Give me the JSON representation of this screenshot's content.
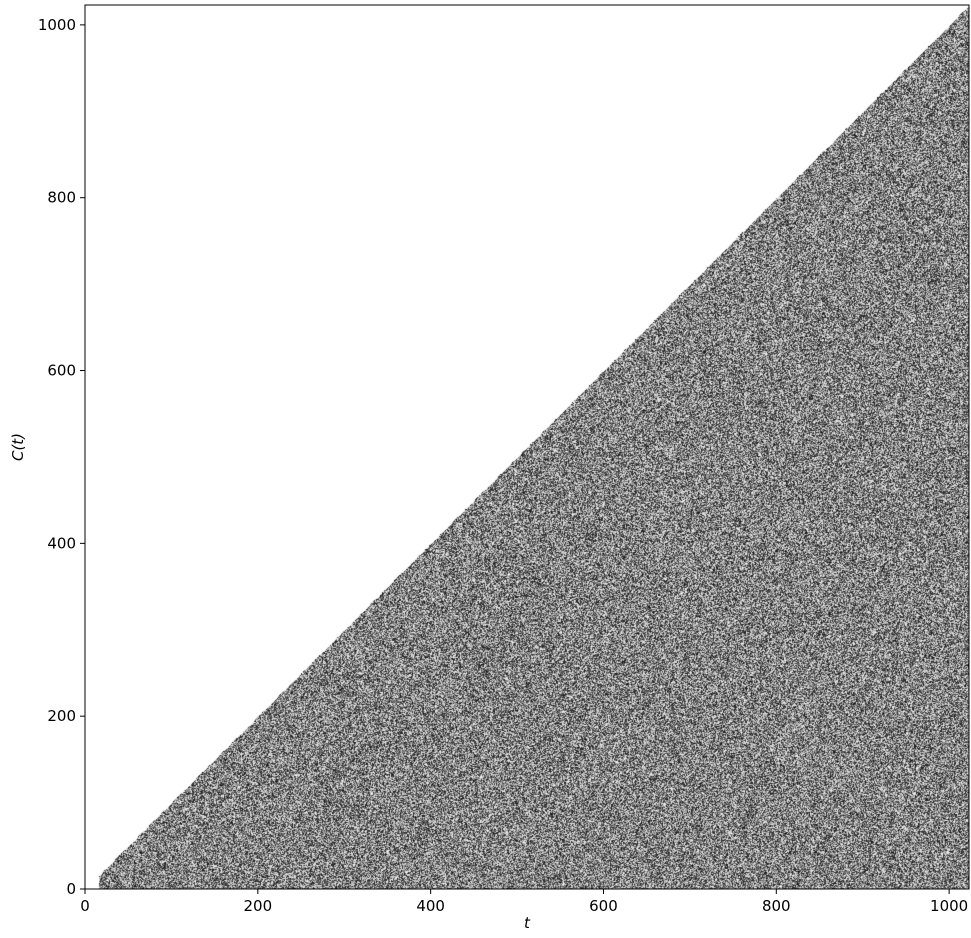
{
  "chart_data": {
    "type": "heatmap",
    "title": "",
    "xlabel": "t",
    "ylabel": "C(t)",
    "xlim": [
      0,
      1023
    ],
    "ylim": [
      0,
      1023
    ],
    "xticks": [
      0,
      200,
      400,
      600,
      800,
      1000
    ],
    "yticks": [
      0,
      200,
      400,
      600,
      800,
      1000
    ],
    "grid": false,
    "legend": "none",
    "cell_region": "lower triangle, C(t) < t",
    "first_filled_t": 16,
    "values": "random grayscale noise",
    "colormap": [
      "#000000",
      "#ffffff"
    ],
    "empty_color": "#ffffff"
  }
}
